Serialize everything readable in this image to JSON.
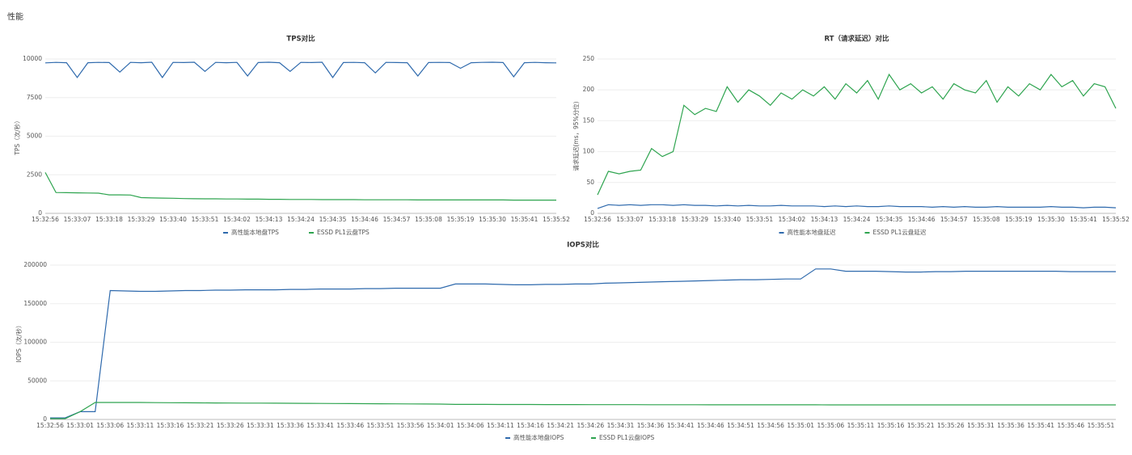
{
  "page_title": "性能",
  "chart_data": [
    {
      "type": "line",
      "title": "TPS对比",
      "y_label": "TPS（次/秒）",
      "categories": [
        "15:32:56",
        null,
        null,
        "15:33:07",
        null,
        null,
        "15:33:18",
        null,
        null,
        "15:33:29",
        null,
        null,
        "15:33:40",
        null,
        null,
        "15:33:51",
        null,
        null,
        "15:34:02",
        null,
        null,
        "15:34:13",
        null,
        null,
        "15:34:24",
        null,
        null,
        "15:34:35",
        null,
        null,
        "15:34:46",
        null,
        null,
        "15:34:57",
        null,
        null,
        "15:35:08",
        null,
        null,
        "15:35:19",
        null,
        null,
        "15:35:30",
        null,
        null,
        "15:35:41",
        null,
        null,
        "15:35:52"
      ],
      "series": [
        {
          "name": "高性能本地盘TPS",
          "color": "#2f6aad",
          "values": [
            9750,
            9780,
            9760,
            8800,
            9760,
            9780,
            9770,
            9150,
            9780,
            9760,
            9790,
            8800,
            9780,
            9770,
            9790,
            9200,
            9780,
            9760,
            9780,
            8900,
            9770,
            9790,
            9760,
            9200,
            9780,
            9770,
            9790,
            8800,
            9770,
            9780,
            9760,
            9100,
            9780,
            9770,
            9760,
            8900,
            9770,
            9780,
            9770,
            9400,
            9760,
            9780,
            9790,
            9770,
            8850,
            9760,
            9780,
            9760,
            9750
          ]
        },
        {
          "name": "ESSD PL1云盘TPS",
          "color": "#2ea44f",
          "values": [
            2650,
            1350,
            1340,
            1330,
            1320,
            1310,
            1200,
            1200,
            1190,
            1020,
            1000,
            990,
            980,
            960,
            950,
            940,
            940,
            930,
            930,
            920,
            920,
            910,
            910,
            900,
            900,
            900,
            890,
            890,
            890,
            890,
            880,
            880,
            880,
            880,
            880,
            870,
            870,
            870,
            870,
            870,
            870,
            870,
            870,
            870,
            860,
            860,
            860,
            860,
            860
          ]
        }
      ],
      "ylim": [
        0,
        10000
      ],
      "yticks": [
        0,
        2500,
        5000,
        7500,
        10000
      ],
      "grid": true
    },
    {
      "type": "line",
      "title": "RT（请求延迟）对比",
      "y_label": "请求延迟(ms，95%分位)",
      "categories": [
        "15:32:56",
        null,
        null,
        "15:33:07",
        null,
        null,
        "15:33:18",
        null,
        null,
        "15:33:29",
        null,
        null,
        "15:33:40",
        null,
        null,
        "15:33:51",
        null,
        null,
        "15:34:02",
        null,
        null,
        "15:34:13",
        null,
        null,
        "15:34:24",
        null,
        null,
        "15:34:35",
        null,
        null,
        "15:34:46",
        null,
        null,
        "15:34:57",
        null,
        null,
        "15:35:08",
        null,
        null,
        "15:35:19",
        null,
        null,
        "15:35:30",
        null,
        null,
        "15:35:41",
        null,
        null,
        "15:35:52"
      ],
      "series": [
        {
          "name": "高性能本地盘延迟",
          "color": "#2f6aad",
          "values": [
            8,
            14,
            13,
            14,
            13,
            14,
            14,
            13,
            14,
            13,
            13,
            12,
            13,
            12,
            13,
            12,
            12,
            13,
            12,
            12,
            12,
            11,
            12,
            11,
            12,
            11,
            11,
            12,
            11,
            11,
            11,
            10,
            11,
            10,
            11,
            10,
            10,
            11,
            10,
            10,
            10,
            10,
            11,
            10,
            10,
            9,
            10,
            10,
            9
          ]
        },
        {
          "name": "ESSD PL1云盘延迟",
          "color": "#2ea44f",
          "values": [
            30,
            68,
            64,
            68,
            70,
            105,
            92,
            100,
            175,
            160,
            170,
            165,
            205,
            180,
            200,
            190,
            175,
            195,
            185,
            200,
            190,
            205,
            185,
            210,
            195,
            215,
            185,
            225,
            200,
            210,
            195,
            205,
            185,
            210,
            200,
            195,
            215,
            180,
            205,
            190,
            210,
            200,
            225,
            205,
            215,
            190,
            210,
            205,
            170
          ]
        }
      ],
      "ylim": [
        0,
        250
      ],
      "yticks": [
        0,
        50,
        100,
        150,
        200,
        250
      ],
      "grid": true
    },
    {
      "type": "line",
      "title": "IOPS对比",
      "y_label": "IOPS（次/秒）",
      "categories": [
        "15:32:56",
        null,
        "15:33:01",
        null,
        "15:33:06",
        null,
        "15:33:11",
        null,
        "15:33:16",
        null,
        "15:33:21",
        null,
        "15:33:26",
        null,
        "15:33:31",
        null,
        "15:33:36",
        null,
        "15:33:41",
        null,
        "15:33:46",
        null,
        "15:33:51",
        null,
        "15:33:56",
        null,
        "15:34:01",
        null,
        "15:34:06",
        null,
        "15:34:11",
        null,
        "15:34:16",
        null,
        "15:34:21",
        null,
        "15:34:26",
        null,
        "15:34:31",
        null,
        "15:34:36",
        null,
        "15:34:41",
        null,
        "15:34:46",
        null,
        "15:34:51",
        null,
        "15:34:56",
        null,
        "15:35:01",
        null,
        "15:35:06",
        null,
        "15:35:11",
        null,
        "15:35:16",
        null,
        "15:35:21",
        null,
        "15:35:26",
        null,
        "15:35:31",
        null,
        "15:35:36",
        null,
        "15:35:41",
        null,
        "15:35:46",
        null,
        "15:35:51",
        null
      ],
      "series": [
        {
          "name": "高性能本地盘IOPS",
          "color": "#2f6aad",
          "values": [
            2000,
            2000,
            10000,
            10000,
            167000,
            166500,
            166000,
            166000,
            166500,
            167000,
            167000,
            167500,
            167500,
            168000,
            168000,
            168000,
            168500,
            168500,
            169000,
            169000,
            169000,
            169500,
            169500,
            170000,
            170000,
            170000,
            170000,
            175500,
            175500,
            175500,
            175000,
            174500,
            174500,
            175000,
            175000,
            175500,
            175500,
            176500,
            177000,
            177500,
            178000,
            178500,
            179000,
            179500,
            180000,
            180500,
            181000,
            181000,
            181500,
            182000,
            182000,
            195000,
            195000,
            192000,
            192000,
            192000,
            191500,
            191000,
            191000,
            191500,
            191500,
            192000,
            192000,
            192000,
            192000,
            192000,
            192000,
            192000,
            191500,
            191500,
            191500,
            191500
          ]
        },
        {
          "name": "ESSD PL1云盘IOPS",
          "color": "#2ea44f",
          "values": [
            1000,
            1000,
            10000,
            22000,
            22000,
            22000,
            22000,
            21800,
            21700,
            21600,
            21500,
            21400,
            21300,
            21200,
            21100,
            21000,
            20900,
            20800,
            20700,
            20600,
            20500,
            20400,
            20300,
            20200,
            20100,
            20000,
            19900,
            19500,
            19500,
            19500,
            19400,
            19400,
            19400,
            19300,
            19300,
            19300,
            19200,
            19200,
            19200,
            19200,
            19100,
            19100,
            19100,
            19100,
            19000,
            19000,
            19000,
            19000,
            19000,
            19000,
            19000,
            19000,
            18900,
            18900,
            18900,
            18900,
            18900,
            18900,
            18900,
            18900,
            18800,
            18800,
            18800,
            18800,
            18800,
            18800,
            18800,
            18800,
            18800,
            18800,
            18800,
            18800
          ]
        }
      ],
      "ylim": [
        0,
        200000
      ],
      "yticks": [
        0,
        50000,
        100000,
        150000,
        200000
      ],
      "grid": true
    }
  ]
}
